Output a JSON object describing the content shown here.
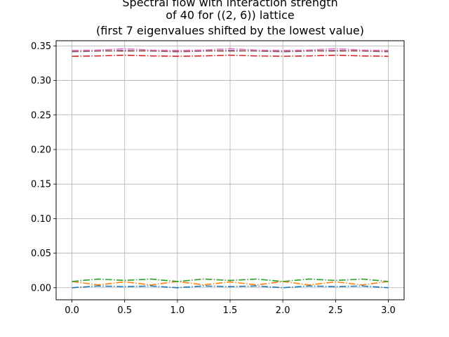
{
  "chart_data": {
    "type": "line",
    "title_lines": [
      "Spectral flow with interaction strength",
      "of 40 for ((2, 6)) lattice",
      "(first 7 eigenvalues shifted by the lowest value)"
    ],
    "xlabel": "",
    "ylabel": "",
    "xlim": [
      -0.15,
      3.15
    ],
    "ylim": [
      -0.0175,
      0.3575
    ],
    "xticks": [
      "0.0",
      "0.5",
      "1.0",
      "1.5",
      "2.0",
      "2.5",
      "3.0"
    ],
    "yticks": [
      "0.00",
      "0.05",
      "0.10",
      "0.15",
      "0.20",
      "0.25",
      "0.30",
      "0.35"
    ],
    "grid": true,
    "line_style": "dash-dot",
    "x": [
      0,
      0.25,
      0.5,
      0.75,
      1.0,
      1.25,
      1.5,
      1.75,
      2.0,
      2.25,
      2.5,
      2.75,
      3.0
    ],
    "series": [
      {
        "color": "#1f77b4",
        "values": [
          0.0,
          0.0025,
          0.0015,
          0.0025,
          0.0,
          0.0025,
          0.0015,
          0.0025,
          0.0,
          0.0025,
          0.0015,
          0.0025,
          0.0
        ]
      },
      {
        "color": "#ff7f0e",
        "values": [
          0.009,
          0.004,
          0.0085,
          0.004,
          0.009,
          0.004,
          0.0085,
          0.004,
          0.009,
          0.004,
          0.0085,
          0.004,
          0.009
        ]
      },
      {
        "color": "#2ca02c",
        "values": [
          0.009,
          0.0125,
          0.0105,
          0.0125,
          0.009,
          0.0125,
          0.0105,
          0.0125,
          0.009,
          0.0125,
          0.0105,
          0.0125,
          0.009
        ]
      },
      {
        "color": "#d62728",
        "values": [
          0.335,
          0.3355,
          0.3365,
          0.3355,
          0.335,
          0.3355,
          0.3365,
          0.3355,
          0.335,
          0.3355,
          0.3365,
          0.3355,
          0.335
        ]
      },
      {
        "color": "#9467bd",
        "values": [
          0.3415,
          0.3425,
          0.3435,
          0.3425,
          0.3415,
          0.3425,
          0.3435,
          0.3425,
          0.3415,
          0.3425,
          0.3435,
          0.3425,
          0.3415
        ]
      },
      {
        "color": "#8c564b",
        "values": [
          0.342,
          0.343,
          0.3425,
          0.343,
          0.342,
          0.343,
          0.3425,
          0.343,
          0.342,
          0.343,
          0.3425,
          0.343,
          0.342
        ]
      },
      {
        "color": "#e377c2",
        "values": [
          0.3435,
          0.344,
          0.346,
          0.344,
          0.3435,
          0.344,
          0.346,
          0.344,
          0.3435,
          0.344,
          0.346,
          0.344,
          0.3435
        ]
      }
    ]
  }
}
